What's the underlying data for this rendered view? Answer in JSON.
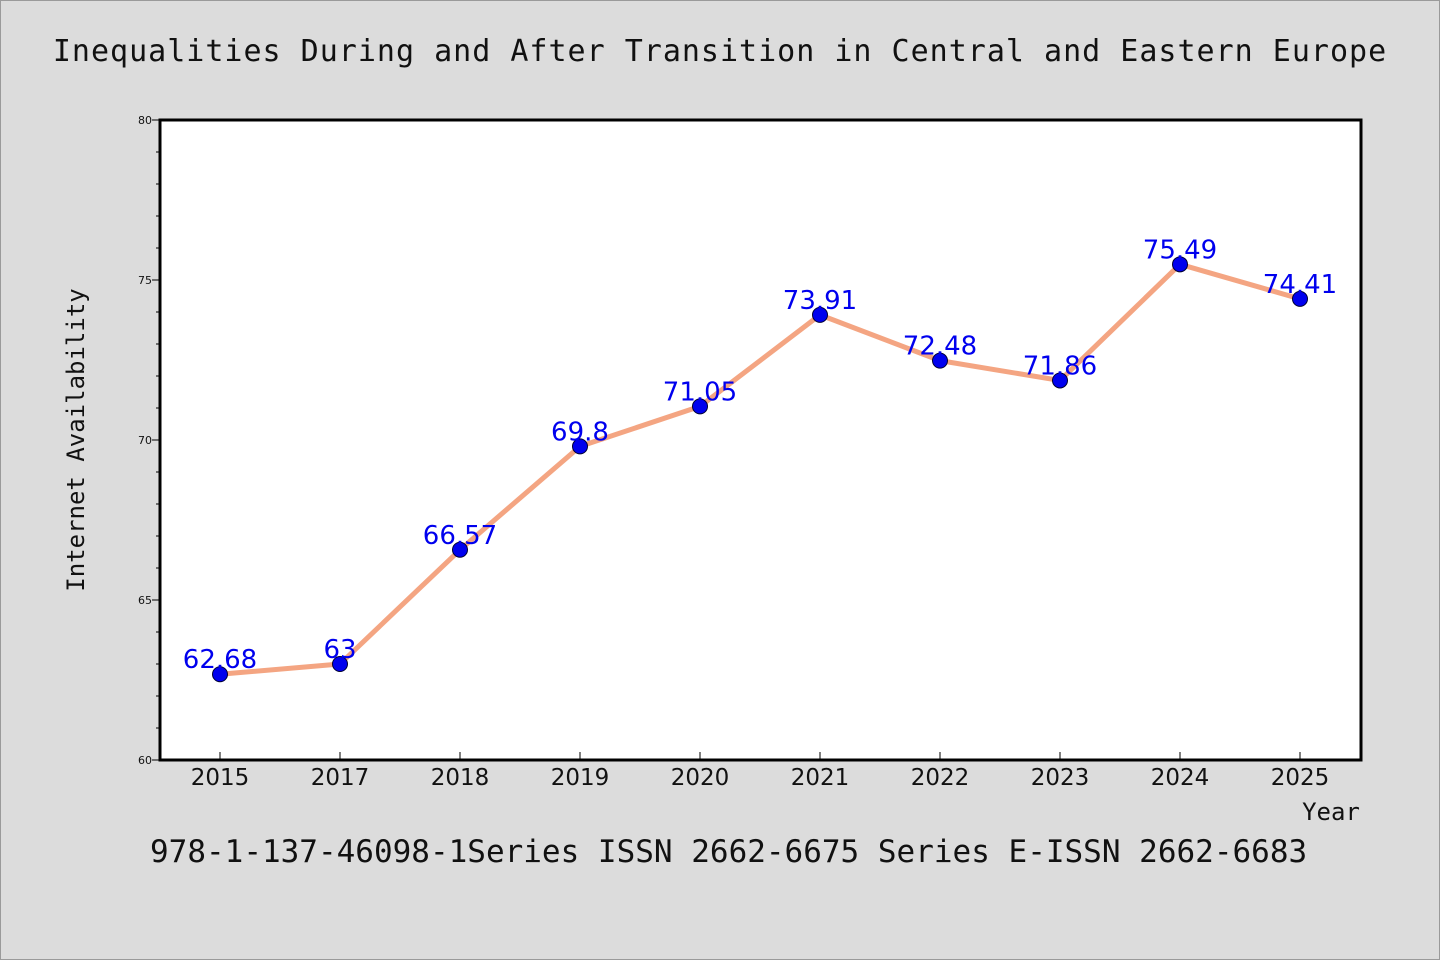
{
  "title": "Inequalities During and After Transition in Central and Eastern Europe",
  "footer": "978-1-137-46098-1Series ISSN 2662-6675 Series E-ISSN 2662-6683",
  "colors": {
    "background": "#dcdcdc",
    "plot_background": "#ffffff",
    "line": "#f4a582",
    "marker": "#0000ee",
    "label": "#0000ee"
  },
  "chart_data": {
    "type": "line",
    "title": "Inequalities During and After Transition in Central and Eastern Europe",
    "xlabel": "Year",
    "ylabel": "Internet Availability",
    "categories": [
      "2015",
      "2017",
      "2018",
      "2019",
      "2020",
      "2021",
      "2022",
      "2023",
      "2024",
      "2025"
    ],
    "series": [
      {
        "values": [
          62.68,
          63,
          66.57,
          69.8,
          71.05,
          73.91,
          72.48,
          71.86,
          75.49,
          74.41
        ],
        "labels": [
          "62.68",
          "63",
          "66.57",
          "69.8",
          "71.05",
          "73.91",
          "72.48",
          "71.86",
          "75.49",
          "74.41"
        ]
      }
    ],
    "ylim": [
      60,
      80
    ],
    "yticks": [
      "60",
      "65",
      "70",
      "75",
      "80"
    ],
    "grid": false,
    "legend": false
  }
}
